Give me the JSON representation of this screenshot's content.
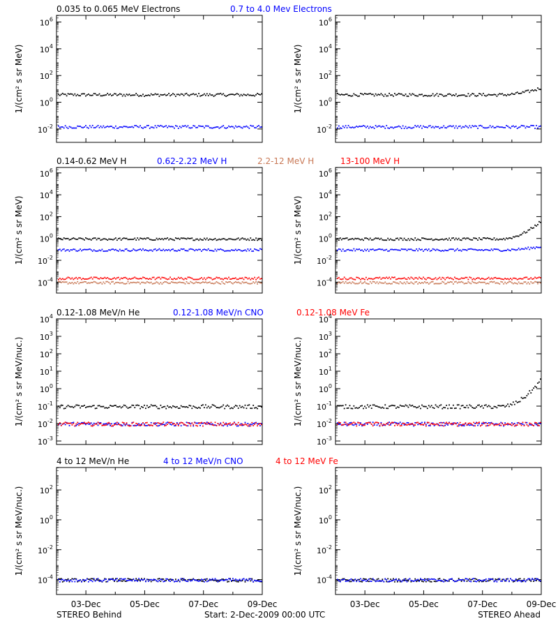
{
  "footer": {
    "left": "STEREO Behind",
    "center": "Start:  2-Dec-2009 00:00 UTC",
    "right": "STEREO Ahead"
  },
  "x_ticks": [
    "03-Dec",
    "05-Dec",
    "07-Dec",
    "09-Dec"
  ],
  "colors": {
    "black": "#000000",
    "blue": "#0000ff",
    "brown": "#c87855",
    "red": "#ff0000"
  },
  "chart_data": [
    {
      "type": "scatter",
      "ylabel": "1/(cm² s sr MeV)",
      "yscale": "log",
      "ylim_exp": [
        -3,
        6.5
      ],
      "ytick_exponents": [
        -2,
        0,
        2,
        4,
        6
      ],
      "xlim": [
        "2-Dec-2009",
        "9-Dec-2009"
      ],
      "legend": [
        {
          "label": "0.035 to 0.065 MeV Electrons",
          "color": "#000000"
        },
        {
          "label": "0.7 to 4.0 Mev Electrons",
          "color": "#0000ff"
        }
      ],
      "panels": [
        {
          "name": "STEREO Behind",
          "series": [
            {
              "name": "0.035 to 0.065 MeV Electrons",
              "color": "#000000",
              "level_exp": 0.6
            },
            {
              "name": "0.7 to 4.0 Mev Electrons",
              "color": "#0000ff",
              "level_exp": -1.8
            }
          ]
        },
        {
          "name": "STEREO Ahead",
          "series": [
            {
              "name": "0.035 to 0.065 MeV Electrons",
              "color": "#000000",
              "level_exp": 0.6,
              "end_exp": 1.1
            },
            {
              "name": "0.7 to 4.0 Mev Electrons",
              "color": "#0000ff",
              "level_exp": -1.8
            }
          ]
        }
      ]
    },
    {
      "type": "scatter",
      "ylabel": "1/(cm² s sr MeV)",
      "yscale": "log",
      "ylim_exp": [
        -5,
        6.5
      ],
      "ytick_exponents": [
        -4,
        -2,
        0,
        2,
        4,
        6
      ],
      "xlim": [
        "2-Dec-2009",
        "9-Dec-2009"
      ],
      "legend": [
        {
          "label": "0.14-0.62 MeV H",
          "color": "#000000"
        },
        {
          "label": "0.62-2.22 MeV H",
          "color": "#0000ff"
        },
        {
          "label": "2.2-12 MeV H",
          "color": "#c87855"
        },
        {
          "label": "13-100 MeV H",
          "color": "#ff0000"
        }
      ],
      "panels": [
        {
          "name": "STEREO Behind",
          "series": [
            {
              "name": "0.14-0.62 MeV H",
              "color": "#000000",
              "level_exp": 0.0
            },
            {
              "name": "0.62-2.22 MeV H",
              "color": "#0000ff",
              "level_exp": -1.0
            },
            {
              "name": "2.2-12 MeV H",
              "color": "#c87855",
              "level_exp": -4.0
            },
            {
              "name": "13-100 MeV H",
              "color": "#ff0000",
              "level_exp": -3.6
            }
          ]
        },
        {
          "name": "STEREO Ahead",
          "series": [
            {
              "name": "0.14-0.62 MeV H",
              "color": "#000000",
              "level_exp": 0.0,
              "end_exp": 1.6
            },
            {
              "name": "0.62-2.22 MeV H",
              "color": "#0000ff",
              "level_exp": -1.0,
              "end_exp": -0.7
            },
            {
              "name": "2.2-12 MeV H",
              "color": "#c87855",
              "level_exp": -4.0
            },
            {
              "name": "13-100 MeV H",
              "color": "#ff0000",
              "level_exp": -3.6
            }
          ]
        }
      ]
    },
    {
      "type": "scatter",
      "ylabel": "1/(cm² s sr MeV/nuc.)",
      "yscale": "log",
      "ylim_exp": [
        -3.2,
        4
      ],
      "ytick_exponents": [
        -3,
        -2,
        -1,
        0,
        1,
        2,
        3,
        4
      ],
      "xlim": [
        "2-Dec-2009",
        "9-Dec-2009"
      ],
      "legend": [
        {
          "label": "0.12-1.08 MeV/n He",
          "color": "#000000"
        },
        {
          "label": "0.12-1.08 MeV/n CNO",
          "color": "#0000ff"
        },
        {
          "label": "0.12-1.08 MeV Fe",
          "color": "#ff0000"
        }
      ],
      "panels": [
        {
          "name": "STEREO Behind",
          "series": [
            {
              "name": "0.12-1.08 MeV/n He",
              "color": "#000000",
              "level_exp": -1.0
            },
            {
              "name": "0.12-1.08 MeV/n CNO",
              "color": "#0000ff",
              "level_exp": -2.0
            },
            {
              "name": "0.12-1.08 MeV Fe",
              "color": "#ff0000",
              "level_exp": -2.0
            }
          ]
        },
        {
          "name": "STEREO Ahead",
          "series": [
            {
              "name": "0.12-1.08 MeV/n He",
              "color": "#000000",
              "level_exp": -1.0,
              "end_exp": 0.5
            },
            {
              "name": "0.12-1.08 MeV/n CNO",
              "color": "#0000ff",
              "level_exp": -2.0
            },
            {
              "name": "0.12-1.08 MeV Fe",
              "color": "#ff0000",
              "level_exp": -2.0
            }
          ]
        }
      ]
    },
    {
      "type": "scatter",
      "ylabel": "1/(cm² s sr MeV/nuc.)",
      "yscale": "log",
      "ylim_exp": [
        -5,
        3.5
      ],
      "ytick_exponents": [
        -4,
        -2,
        0,
        2
      ],
      "xlim": [
        "2-Dec-2009",
        "9-Dec-2009"
      ],
      "legend": [
        {
          "label": "4 to 12 MeV/n He",
          "color": "#000000"
        },
        {
          "label": "4 to 12 MeV/n CNO",
          "color": "#0000ff"
        },
        {
          "label": "4 to 12 MeV Fe",
          "color": "#ff0000"
        }
      ],
      "panels": [
        {
          "name": "STEREO Behind",
          "series": [
            {
              "name": "4 to 12 MeV/n He",
              "color": "#000000",
              "level_exp": -4.0
            },
            {
              "name": "4 to 12 MeV/n CNO",
              "color": "#0000ff",
              "level_exp": -4.0
            }
          ]
        },
        {
          "name": "STEREO Ahead",
          "series": [
            {
              "name": "4 to 12 MeV/n He",
              "color": "#000000",
              "level_exp": -4.0
            },
            {
              "name": "4 to 12 MeV/n CNO",
              "color": "#0000ff",
              "level_exp": -4.0
            }
          ]
        }
      ]
    }
  ]
}
